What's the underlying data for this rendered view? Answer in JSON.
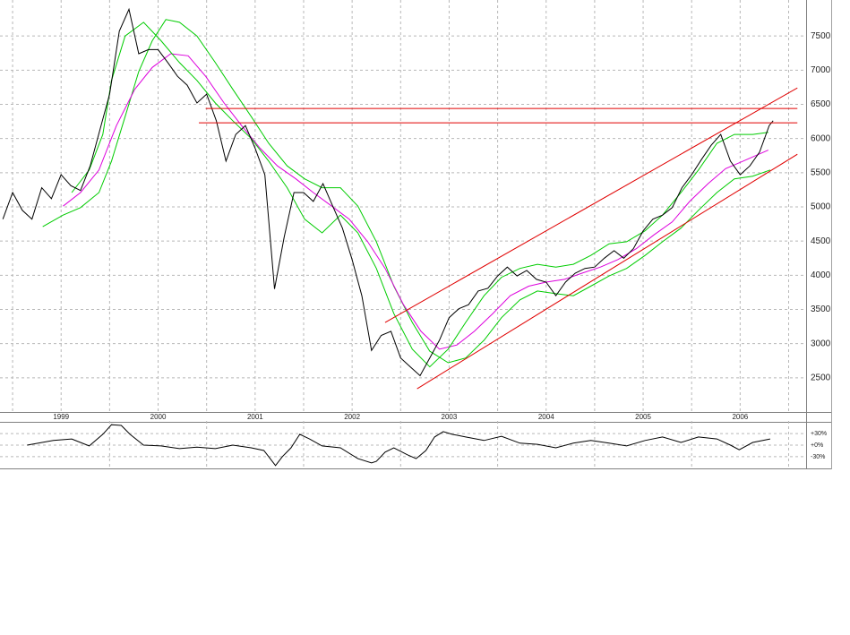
{
  "chart_data": [
    {
      "type": "line",
      "xlim": [
        1998.87,
        2007.18
      ],
      "ylim": [
        2000,
        8000
      ],
      "yticks": [
        2500,
        3000,
        3500,
        4000,
        4500,
        5000,
        5500,
        6000,
        6500,
        7000,
        7500
      ],
      "xticks": [
        {
          "value": 1999.5,
          "label": "1999"
        },
        {
          "value": 2000.5,
          "label": "2000"
        },
        {
          "value": 2001.5,
          "label": "2001"
        },
        {
          "value": 2002.5,
          "label": "2002"
        },
        {
          "value": 2003.5,
          "label": "2003"
        },
        {
          "value": 2004.5,
          "label": "2004"
        },
        {
          "value": 2005.5,
          "label": "2005"
        },
        {
          "value": 2006.5,
          "label": "2006"
        }
      ],
      "x_gridlines": [
        1999,
        2000,
        2001,
        2002,
        2003,
        2004,
        2005,
        2006,
        2007
      ],
      "grid": true,
      "series": [
        {
          "color": "#00cc00",
          "x": [
            1999.31,
            1999.52,
            1999.7,
            1999.89,
            2000.02,
            2000.16,
            2000.3,
            2000.44,
            2000.58,
            2000.72,
            2000.9,
            2001.09,
            2001.27,
            2001.46,
            2001.64,
            2001.83,
            2002.01,
            2002.19,
            2002.38,
            2002.56,
            2002.75,
            2002.93,
            2003.12,
            2003.3,
            2003.49,
            2003.67,
            2003.86,
            2004.04,
            2004.23,
            2004.41,
            2004.6,
            2004.78,
            2004.96,
            2005.15,
            2005.33,
            2005.52,
            2005.7,
            2005.89,
            2006.07,
            2006.26,
            2006.44,
            2006.63,
            2006.81
          ],
          "values": [
            4710,
            4880,
            4990,
            5210,
            5670,
            6320,
            6980,
            7430,
            7740,
            7700,
            7500,
            7110,
            6720,
            6320,
            5930,
            5600,
            5410,
            5280,
            5280,
            5010,
            4490,
            3840,
            3310,
            2890,
            2720,
            2790,
            3050,
            3380,
            3640,
            3770,
            3730,
            3700,
            3840,
            3990,
            4100,
            4290,
            4490,
            4690,
            4950,
            5210,
            5410,
            5450,
            5540
          ]
        },
        {
          "color": "#dd00dd",
          "x": [
            1999.52,
            1999.7,
            1999.89,
            2000.07,
            2000.26,
            2000.44,
            2000.63,
            2000.81,
            2000.99,
            2001.18,
            2001.36,
            2001.55,
            2001.73,
            2001.92,
            2002.1,
            2002.29,
            2002.47,
            2002.66,
            2002.84,
            2003.03,
            2003.21,
            2003.4,
            2003.58,
            2003.76,
            2003.95,
            2004.13,
            2004.32,
            2004.5,
            2004.69,
            2004.87,
            2005.06,
            2005.24,
            2005.43,
            2005.61,
            2005.8,
            2005.98,
            2006.17,
            2006.35,
            2006.53,
            2006.79
          ],
          "values": [
            5010,
            5210,
            5540,
            6190,
            6720,
            7040,
            7240,
            7210,
            6910,
            6520,
            6190,
            5860,
            5600,
            5410,
            5210,
            5010,
            4820,
            4490,
            4100,
            3570,
            3180,
            2920,
            2980,
            3180,
            3440,
            3700,
            3840,
            3900,
            3940,
            4030,
            4120,
            4230,
            4390,
            4590,
            4780,
            5080,
            5340,
            5560,
            5670,
            5830
          ]
        },
        {
          "color": "#00cc00",
          "x": [
            1999.61,
            1999.79,
            1999.93,
            2000.02,
            2000.16,
            2000.35,
            2000.53,
            2000.72,
            2000.9,
            2001.09,
            2001.27,
            2001.46,
            2001.64,
            2001.83,
            2002.01,
            2002.19,
            2002.38,
            2002.56,
            2002.75,
            2002.93,
            2003.12,
            2003.3,
            2003.49,
            2003.67,
            2003.86,
            2004.04,
            2004.23,
            2004.41,
            2004.6,
            2004.78,
            2004.96,
            2005.15,
            2005.33,
            2005.52,
            2005.7,
            2005.89,
            2006.07,
            2006.26,
            2006.44,
            2006.63,
            2006.79
          ],
          "values": [
            5210,
            5540,
            6060,
            6850,
            7500,
            7700,
            7430,
            7110,
            6850,
            6520,
            6260,
            6000,
            5670,
            5280,
            4820,
            4620,
            4880,
            4620,
            4100,
            3440,
            2920,
            2660,
            2920,
            3310,
            3700,
            3970,
            4100,
            4160,
            4120,
            4160,
            4290,
            4460,
            4490,
            4650,
            4880,
            5210,
            5540,
            5930,
            6060,
            6060,
            6090
          ]
        },
        {
          "color": "#000000",
          "x": [
            1998.9,
            1999.0,
            1999.1,
            1999.2,
            1999.3,
            1999.4,
            1999.5,
            1999.6,
            1999.7,
            1999.8,
            1999.9,
            2000.0,
            2000.1,
            2000.2,
            2000.3,
            2000.4,
            2000.5,
            2000.6,
            2000.7,
            2000.8,
            2000.9,
            2001.0,
            2001.1,
            2001.2,
            2001.3,
            2001.4,
            2001.5,
            2001.6,
            2001.7,
            2001.8,
            2001.9,
            2002.0,
            2002.1,
            2002.2,
            2002.3,
            2002.4,
            2002.5,
            2002.6,
            2002.7,
            2002.8,
            2002.9,
            2003.0,
            2003.1,
            2003.2,
            2003.3,
            2003.4,
            2003.5,
            2003.6,
            2003.7,
            2003.8,
            2003.9,
            2004.0,
            2004.1,
            2004.2,
            2004.3,
            2004.4,
            2004.5,
            2004.6,
            2004.7,
            2004.8,
            2004.9,
            2005.0,
            2005.1,
            2005.2,
            2005.3,
            2005.4,
            2005.5,
            2005.6,
            2005.7,
            2005.8,
            2005.9,
            2006.0,
            2006.1,
            2006.2,
            2006.3,
            2006.4,
            2006.5,
            2006.6,
            2006.7,
            2006.8,
            2006.84
          ],
          "values": [
            4820,
            5210,
            4950,
            4820,
            5280,
            5120,
            5470,
            5310,
            5240,
            5600,
            6130,
            6650,
            7570,
            7890,
            7240,
            7300,
            7300,
            7110,
            6910,
            6780,
            6520,
            6650,
            6260,
            5670,
            6060,
            6190,
            5860,
            5470,
            3800,
            4560,
            5210,
            5210,
            5080,
            5340,
            5010,
            4690,
            4230,
            3700,
            2900,
            3120,
            3180,
            2790,
            2660,
            2530,
            2790,
            3050,
            3380,
            3510,
            3570,
            3770,
            3810,
            3990,
            4120,
            3990,
            4070,
            3940,
            3900,
            3700,
            3900,
            4030,
            4100,
            4120,
            4250,
            4360,
            4250,
            4390,
            4650,
            4820,
            4880,
            4990,
            5280,
            5470,
            5690,
            5900,
            6060,
            5670,
            5470,
            5600,
            5800,
            6190,
            6260
          ]
        }
      ],
      "reference_lines": [
        {
          "color": "#e00000",
          "x": [
            2000.99,
            2007.09
          ],
          "values": [
            6440,
            6440
          ]
        },
        {
          "color": "#e00000",
          "x": [
            2000.92,
            2007.09
          ],
          "values": [
            6230,
            6230
          ]
        },
        {
          "color": "#e00000",
          "x": [
            2002.84,
            2007.09
          ],
          "values": [
            3310,
            6740
          ]
        },
        {
          "color": "#e00000",
          "x": [
            2003.17,
            2007.09
          ],
          "values": [
            2340,
            5770
          ]
        }
      ]
    },
    {
      "type": "line",
      "xlim": [
        1998.87,
        2007.18
      ],
      "ylim": [
        -58,
        58
      ],
      "yticks": [
        {
          "value": 30,
          "label": "+30%"
        },
        {
          "value": 0,
          "label": "+0%"
        },
        {
          "value": -30,
          "label": "-30%"
        }
      ],
      "x_gridlines": [
        2000,
        2001,
        2002,
        2003,
        2004,
        2005,
        2006,
        2007
      ],
      "grid": true,
      "series": [
        {
          "color": "#000000",
          "x": [
            1999.15,
            1999.42,
            1999.61,
            1999.79,
            1999.93,
            2000.02,
            2000.12,
            2000.21,
            2000.35,
            2000.53,
            2000.72,
            2000.9,
            2001.09,
            2001.27,
            2001.46,
            2001.59,
            2001.64,
            2001.71,
            2001.78,
            2001.87,
            2001.96,
            2002.06,
            2002.19,
            2002.38,
            2002.56,
            2002.7,
            2002.75,
            2002.84,
            2002.93,
            2003.07,
            2003.16,
            2003.26,
            2003.35,
            2003.44,
            2003.53,
            2003.67,
            2003.86,
            2004.04,
            2004.23,
            2004.41,
            2004.6,
            2004.78,
            2004.96,
            2005.15,
            2005.33,
            2005.52,
            2005.7,
            2005.89,
            2006.07,
            2006.26,
            2006.4,
            2006.49,
            2006.63,
            2006.81
          ],
          "values": [
            0,
            12,
            16,
            -2,
            28,
            53,
            51,
            28,
            0,
            -2,
            -9,
            -5,
            -9,
            0,
            -7,
            -14,
            -30,
            -53,
            -30,
            -7,
            28,
            16,
            -2,
            -7,
            -35,
            -46,
            -42,
            -18,
            -7,
            -25,
            -35,
            -14,
            21,
            35,
            28,
            21,
            12,
            23,
            5,
            2,
            -7,
            5,
            12,
            5,
            -2,
            12,
            21,
            7,
            21,
            16,
            0,
            -12,
            7,
            16
          ]
        }
      ]
    }
  ]
}
